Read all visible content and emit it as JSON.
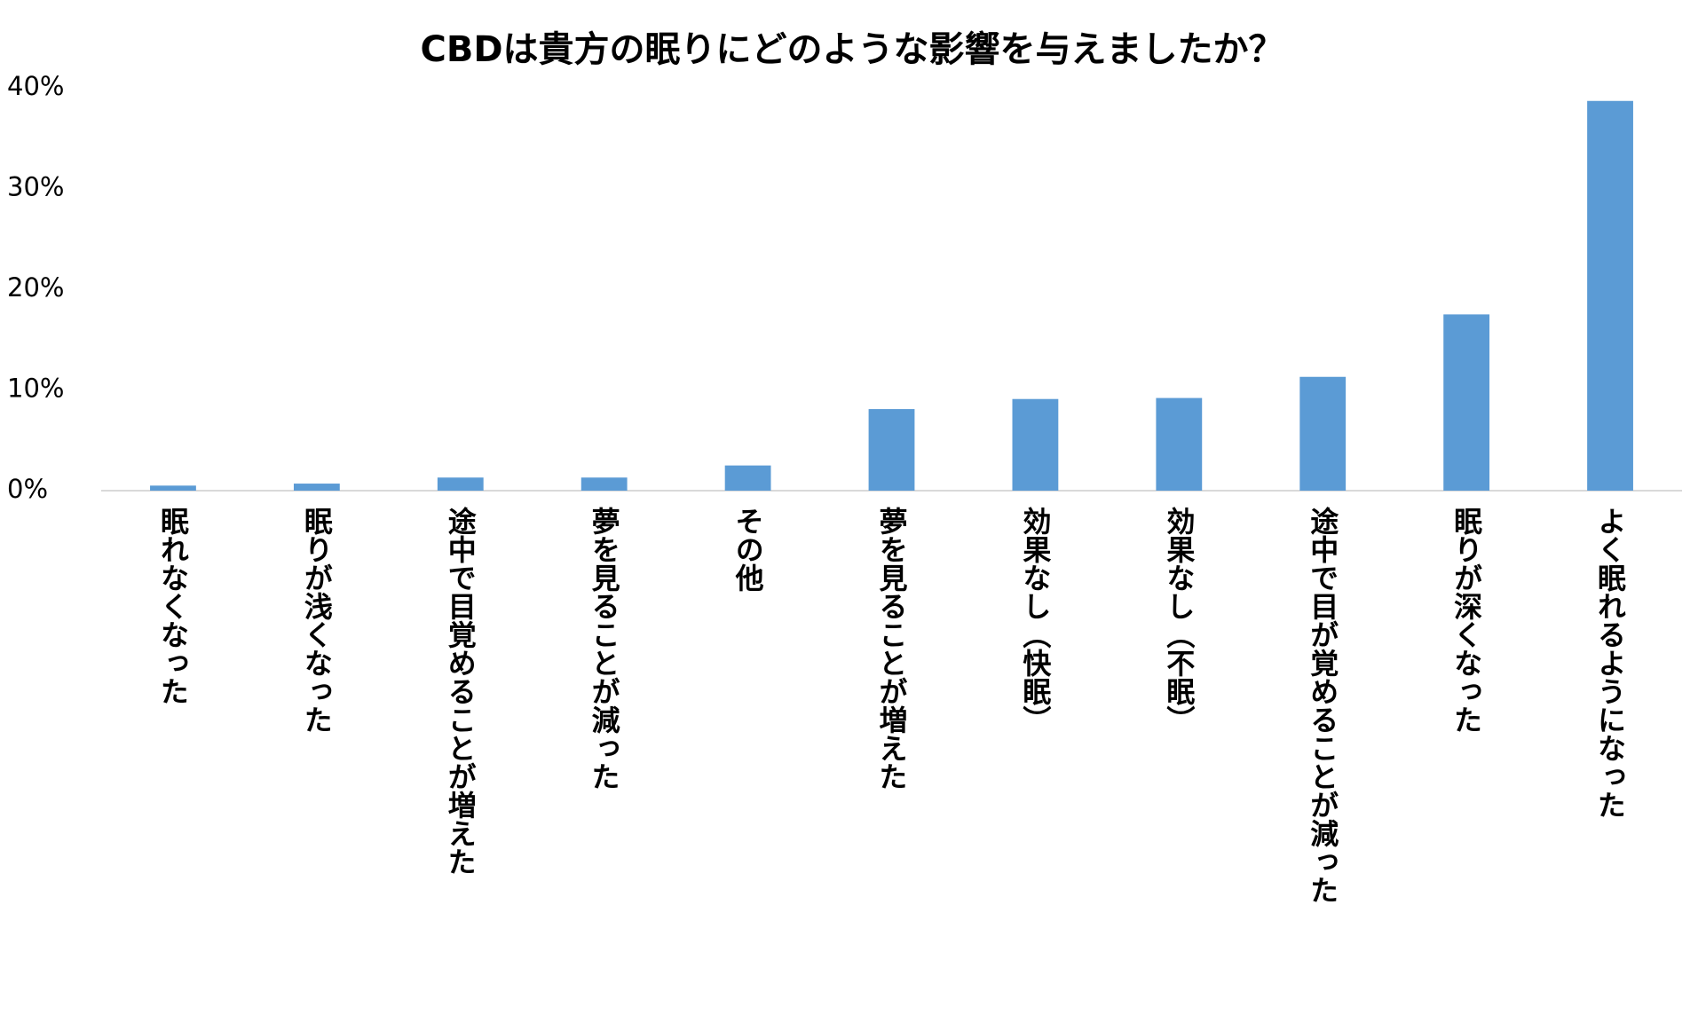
{
  "chart_data": {
    "type": "bar",
    "title": "CBDは貴方の眠りにどのような影響を与えましたか？",
    "categories": [
      "眠れなくなった",
      "眠りが浅くなった",
      "途中で目覚めることが増えた",
      "夢を見ることが減った",
      "その他",
      "夢を見ることが増えた",
      "効果なし（快眠）",
      "効果なし（不眠）",
      "途中で目が覚めることが減った",
      "眠りが深くなった",
      "よく眠れるようになった"
    ],
    "values": [
      0.5,
      0.7,
      1.3,
      1.3,
      2.5,
      8.1,
      9.1,
      9.2,
      11.3,
      17.5,
      38.7
    ],
    "color": "#5b9bd5",
    "ylim": [
      0,
      40
    ],
    "yticks": [
      {
        "value": 0,
        "label": "0%"
      },
      {
        "value": 10,
        "label": "10%"
      },
      {
        "value": 20,
        "label": "20%"
      },
      {
        "value": 30,
        "label": "30%"
      },
      {
        "value": 40,
        "label": "40%"
      }
    ],
    "grid": false
  }
}
